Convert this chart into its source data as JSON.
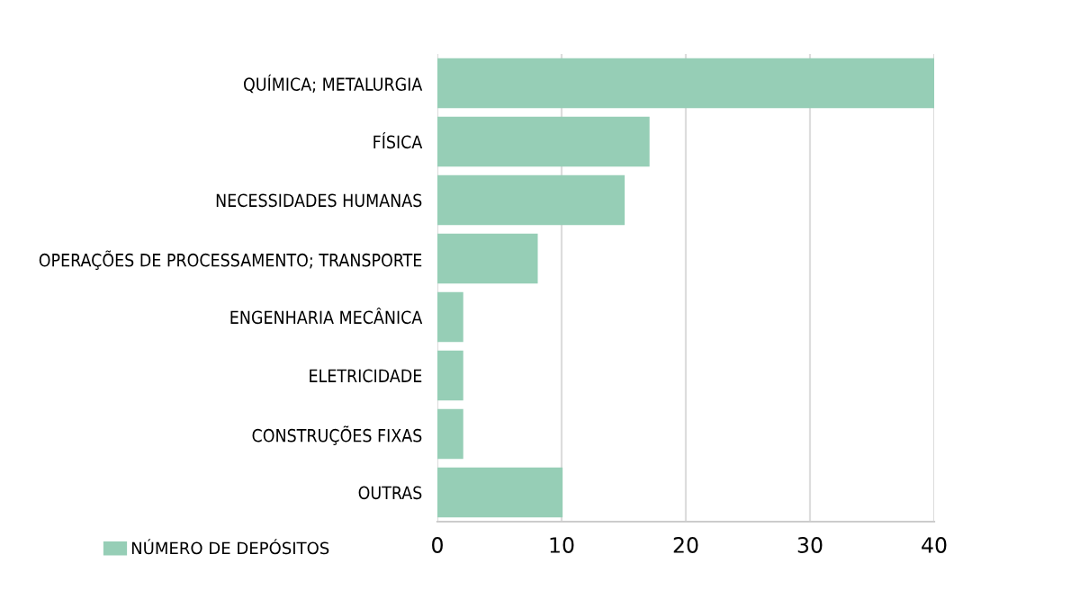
{
  "chart_data": {
    "type": "bar",
    "orientation": "horizontal",
    "categories": [
      "QUÍMICA; METALURGIA",
      "FÍSICA",
      "NECESSIDADES HUMANAS",
      "OPERAÇÕES DE PROCESSAMENTO; TRANSPORTE",
      "ENGENHARIA MECÂNICA",
      "ELETRICIDADE",
      "CONSTRUÇÕES FIXAS",
      "OUTRAS"
    ],
    "series": [
      {
        "name": "NÚMERO DE DEPÓSITOS",
        "color": "#96ceb6",
        "values": [
          40,
          17,
          15,
          8,
          2,
          2,
          2,
          10
        ]
      }
    ],
    "xlim": [
      0,
      40
    ],
    "xticks": [
      0,
      10,
      20,
      30,
      40
    ],
    "grid": "x",
    "legend": "bottom left"
  }
}
